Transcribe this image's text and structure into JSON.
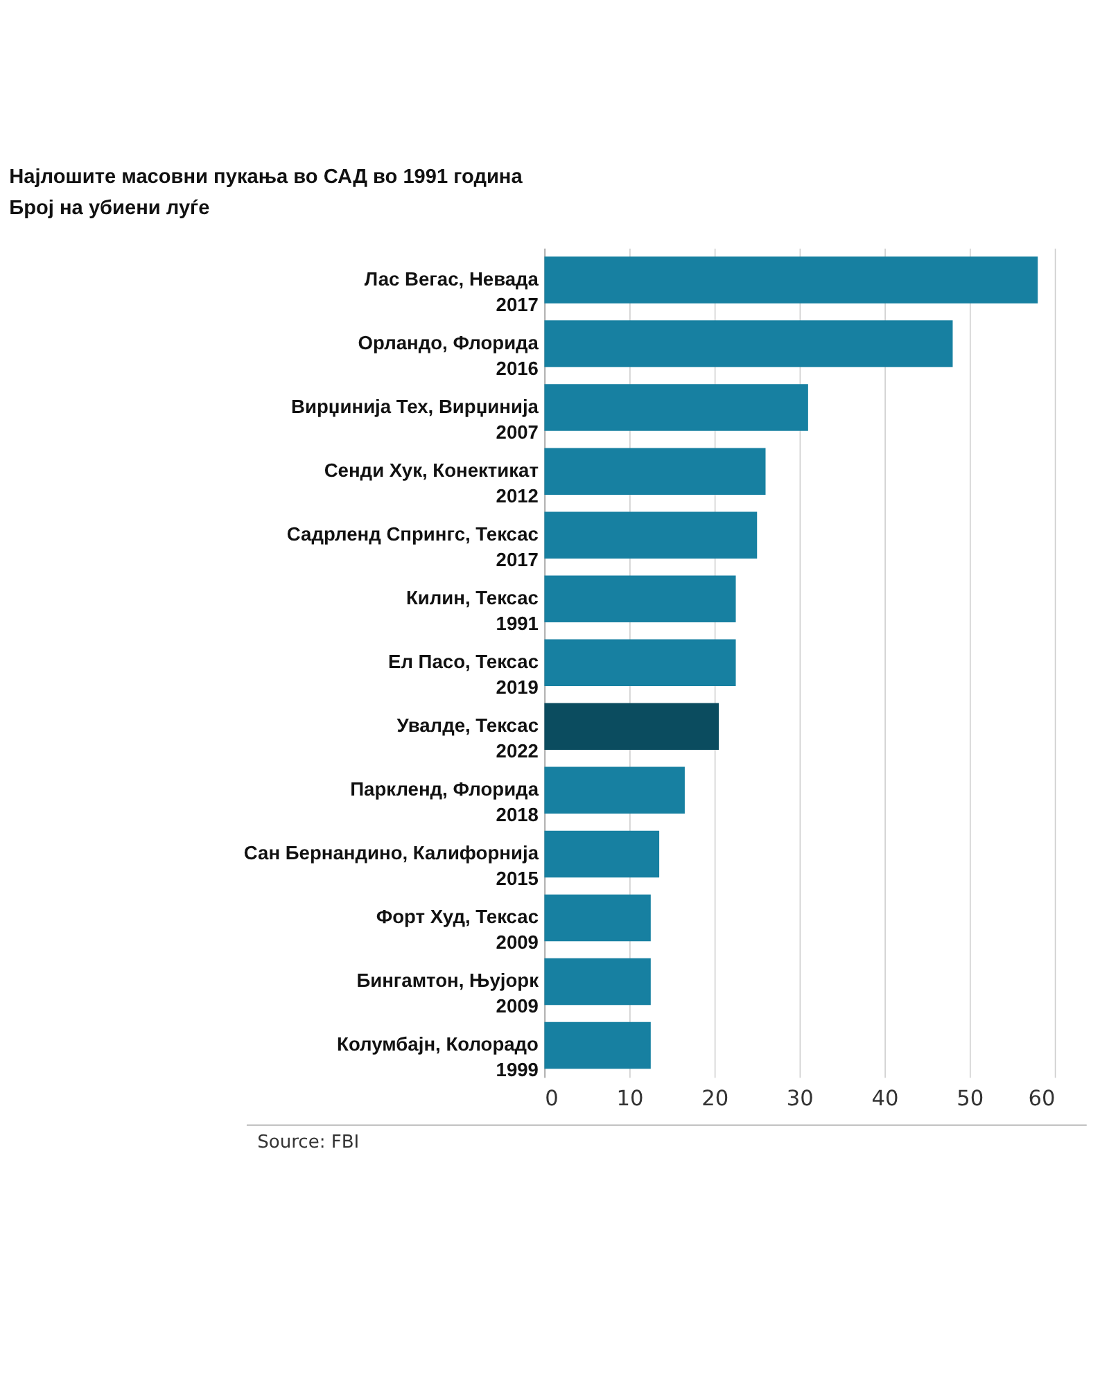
{
  "chart_data": {
    "type": "bar",
    "orientation": "horizontal",
    "title": "Најлошите масовни пукања во САД во 1991 година",
    "subtitle": "Број на убиени луѓе",
    "categories": [
      "Лас Вегас, Невада\n2017",
      "Орландо, Флорида\n2016",
      "Вирџинија Тех, Вирџинија\n2007",
      "Сенди Хук, Конектикат\n2012",
      "Садрленд Спрингс, Тексас\n2017",
      "Килин, Тексас\n1991",
      "Ел Пасо, Тексас\n2019",
      "Увалде, Тексас\n2022",
      "Паркленд, Флорида\n2018",
      "Сан Бернандино, Калифорнија\n2015",
      "Форт Худ, Тексас\n2009",
      "Бингамтон, Њујорк\n2009",
      "Колумбајн, Колорадо\n1999"
    ],
    "values": [
      58,
      48,
      31,
      26,
      25,
      22.5,
      22.5,
      20.5,
      16.5,
      13.5,
      12.5,
      12.5,
      12.5
    ],
    "colors": [
      "#1780a1",
      "#1780a1",
      "#1780a1",
      "#1780a1",
      "#1780a1",
      "#1780a1",
      "#1780a1",
      "#0b4c5f",
      "#1780a1",
      "#1780a1",
      "#1780a1",
      "#1780a1",
      "#1780a1"
    ],
    "xlim": [
      0,
      60
    ],
    "xticks": [
      0,
      10,
      20,
      30,
      40,
      50,
      60
    ],
    "grid": "x",
    "annotations": [
      "Source: FBI"
    ]
  }
}
